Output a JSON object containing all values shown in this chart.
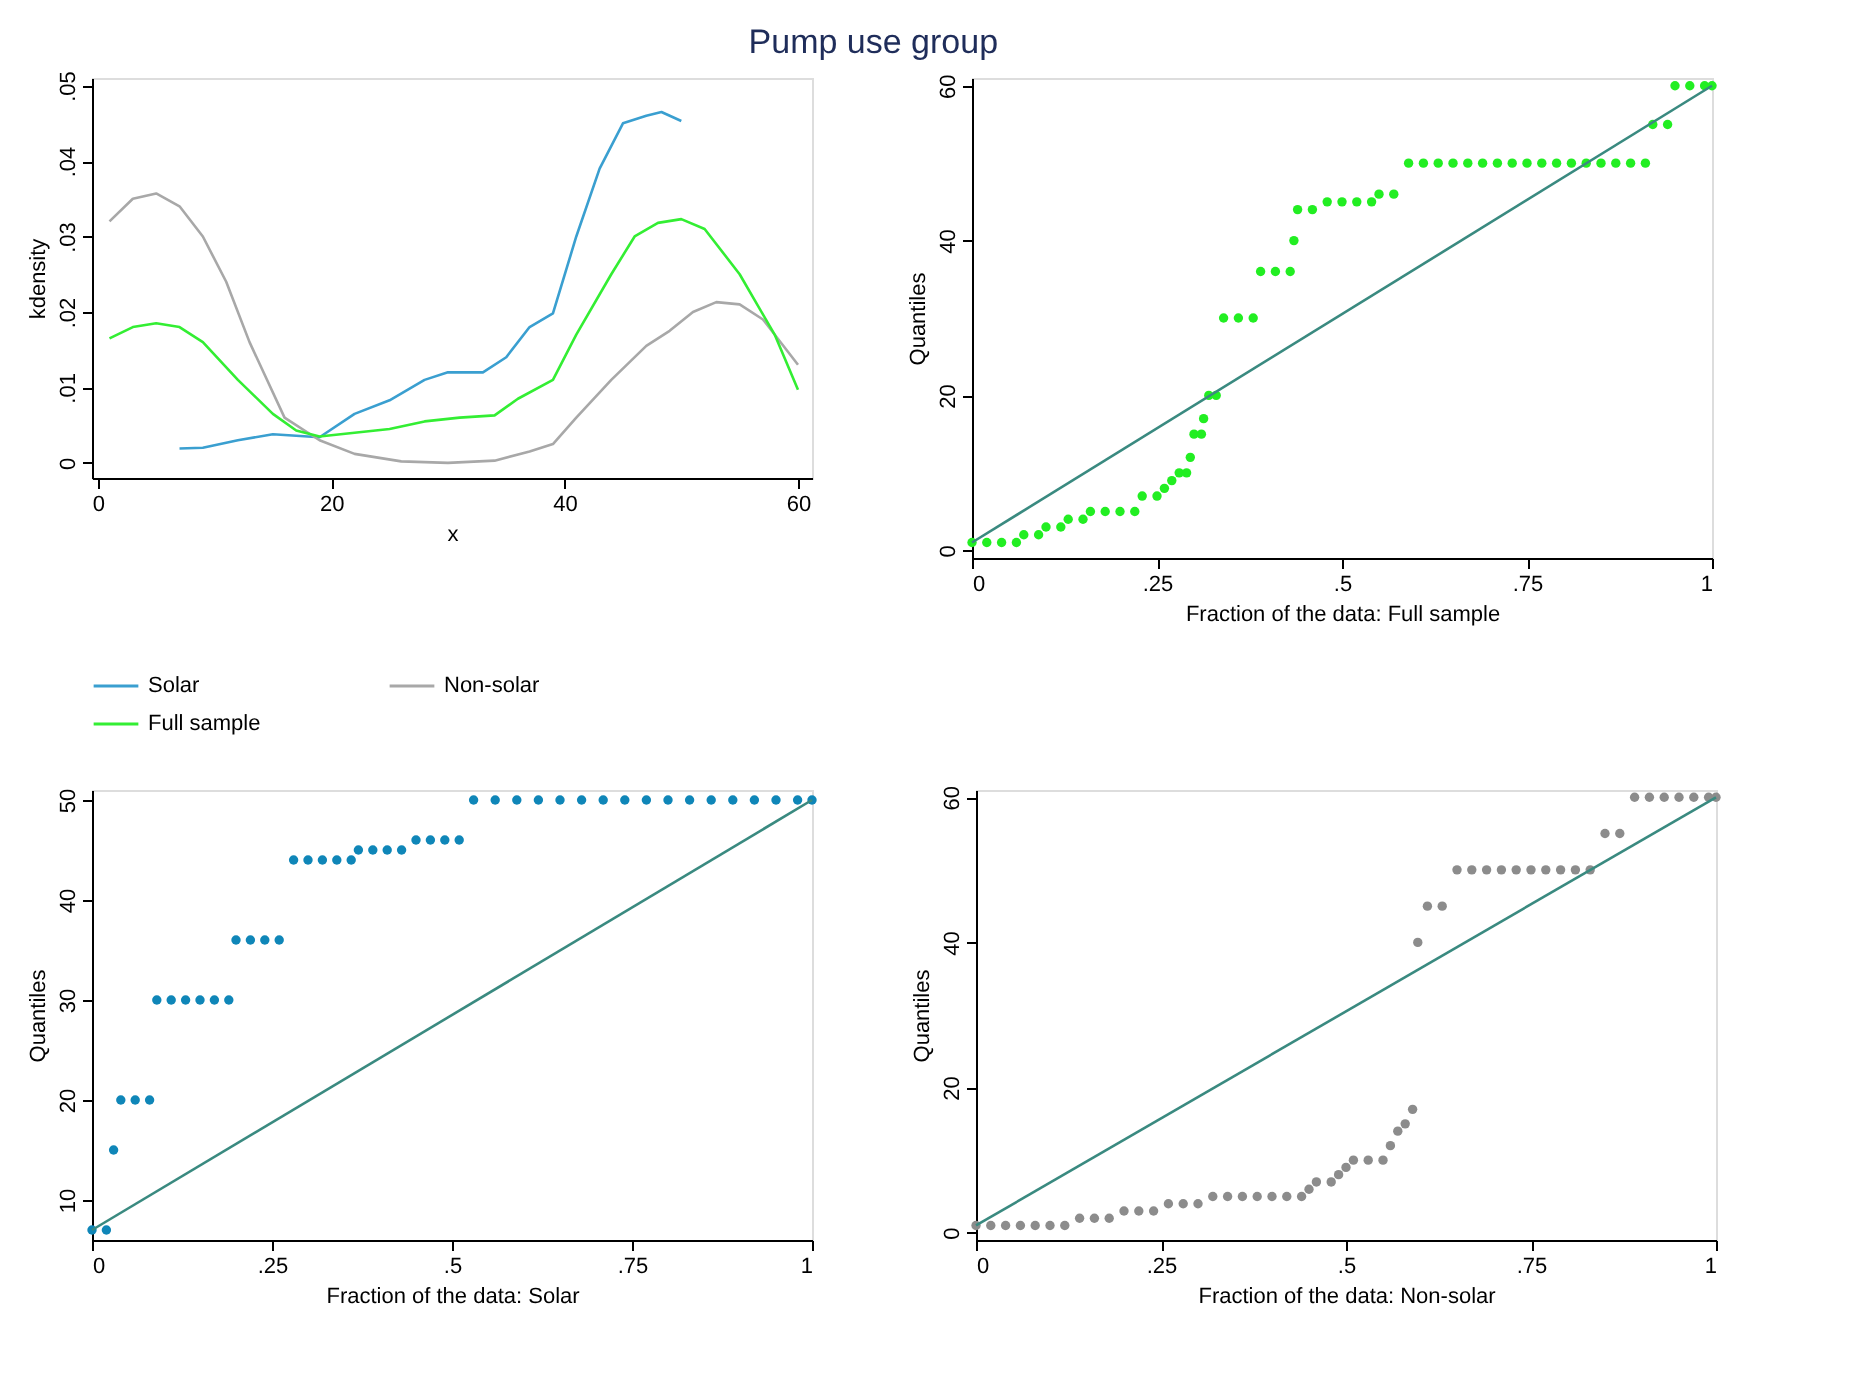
{
  "chart_data": [
    {
      "type": "line",
      "title": "Pump use group",
      "xlabel": "x",
      "ylabel": "kdensity",
      "legend": "bottom",
      "xlim": [
        -0.5,
        61.2
      ],
      "xticks": [
        0,
        20,
        40,
        60
      ],
      "ylim": [
        -0.002,
        0.051
      ],
      "yticks": [
        0,
        {
          "value": 0.01,
          "label": ".01"
        },
        {
          "value": 0.02,
          "label": ".02"
        },
        {
          "value": 0.03,
          "label": ".03"
        },
        {
          "value": 0.04,
          "label": ".04"
        },
        {
          "value": 0.05,
          "label": ".05"
        }
      ],
      "series": [
        {
          "name": "Solar",
          "color": "#3a9fd0",
          "x": [
            7,
            9,
            12,
            15,
            19,
            22,
            25,
            28,
            30,
            33,
            35,
            37,
            39,
            41,
            43,
            45,
            47,
            48.3,
            50
          ],
          "values": [
            0.0019,
            0.002,
            0.003,
            0.0038,
            0.0034,
            0.0065,
            0.0083,
            0.011,
            0.012,
            0.012,
            0.014,
            0.018,
            0.0198,
            0.03,
            0.039,
            0.045,
            0.046,
            0.0465,
            0.0453
          ]
        },
        {
          "name": "Non-solar",
          "color": "#a8a8a8",
          "x": [
            1,
            3,
            5,
            7,
            9,
            11,
            13,
            16,
            19,
            22,
            26,
            30,
            34,
            37,
            39,
            41,
            44,
            47,
            49,
            51,
            53,
            55,
            57,
            60
          ],
          "values": [
            0.032,
            0.035,
            0.0357,
            0.034,
            0.03,
            0.024,
            0.016,
            0.006,
            0.003,
            0.0012,
            0.0002,
            0,
            0.0003,
            0.0015,
            0.0025,
            0.006,
            0.011,
            0.0155,
            0.0175,
            0.02,
            0.0213,
            0.021,
            0.019,
            0.013
          ]
        },
        {
          "name": "Full sample",
          "color": "#33ee33",
          "x": [
            1,
            3,
            5,
            7,
            9,
            12,
            15,
            17,
            19,
            22,
            25,
            28,
            31,
            34,
            36,
            39,
            41,
            44,
            46,
            48,
            50,
            52,
            55,
            58,
            60
          ],
          "values": [
            0.0165,
            0.018,
            0.0185,
            0.018,
            0.016,
            0.011,
            0.0065,
            0.0043,
            0.0035,
            0.004,
            0.0045,
            0.0055,
            0.006,
            0.0063,
            0.0085,
            0.011,
            0.017,
            0.025,
            0.03,
            0.0318,
            0.0323,
            0.031,
            0.025,
            0.017,
            0.0097
          ]
        }
      ]
    },
    {
      "type": "scatter",
      "xlabel": "Fraction of the data: Full sample",
      "ylabel": "Quantiles",
      "xlim": [
        0,
        1
      ],
      "xticks": [
        0,
        {
          "value": 0.25,
          "label": ".25"
        },
        {
          "value": 0.5,
          "label": ".5"
        },
        {
          "value": 0.75,
          "label": ".75"
        },
        1
      ],
      "ylim": [
        -1,
        61
      ],
      "yticks": [
        0,
        20,
        40,
        60
      ],
      "series": [
        {
          "color": "#22ee22",
          "marker": "circle",
          "x": [
            0,
            0.02,
            0.04,
            0.06,
            0.07,
            0.09,
            0.1,
            0.12,
            0.13,
            0.15,
            0.16,
            0.18,
            0.2,
            0.22,
            0.23,
            0.25,
            0.26,
            0.27,
            0.28,
            0.29,
            0.295,
            0.3,
            0.31,
            0.313,
            0.32,
            0.33,
            0.34,
            0.36,
            0.38,
            0.39,
            0.41,
            0.43,
            0.435,
            0.44,
            0.46,
            0.48,
            0.5,
            0.52,
            0.54,
            0.55,
            0.57,
            0.59,
            0.61,
            0.63,
            0.65,
            0.67,
            0.69,
            0.71,
            0.73,
            0.75,
            0.77,
            0.79,
            0.81,
            0.83,
            0.85,
            0.87,
            0.89,
            0.91,
            0.92,
            0.94,
            0.95,
            0.97,
            0.99,
            1
          ],
          "values": [
            1,
            1,
            1,
            1,
            2,
            2,
            3,
            3,
            4,
            4,
            5,
            5,
            5,
            5,
            7,
            7,
            8,
            9,
            10,
            10,
            12,
            15,
            15,
            17,
            20,
            20,
            30,
            30,
            30,
            36,
            36,
            36,
            40,
            44,
            44,
            45,
            45,
            45,
            45,
            46,
            46,
            50,
            50,
            50,
            50,
            50,
            50,
            50,
            50,
            50,
            50,
            50,
            50,
            50,
            50,
            50,
            50,
            50,
            55,
            55,
            60,
            60,
            60,
            60
          ]
        },
        {
          "type": "line",
          "color": "#3a8a80",
          "x": [
            0,
            1
          ],
          "values": [
            1,
            60
          ]
        }
      ]
    },
    {
      "type": "scatter",
      "xlabel": "Fraction of the data: Solar",
      "ylabel": "Quantiles",
      "xlim": [
        0,
        1
      ],
      "xticks": [
        0,
        {
          "value": 0.25,
          "label": ".25"
        },
        {
          "value": 0.5,
          "label": ".5"
        },
        {
          "value": 0.75,
          "label": ".75"
        },
        1
      ],
      "ylim": [
        6,
        51
      ],
      "yticks": [
        10,
        20,
        30,
        40,
        50
      ],
      "series": [
        {
          "color": "#0f86b8",
          "marker": "circle",
          "x": [
            0,
            0.02,
            0.03,
            0.04,
            0.06,
            0.08,
            0.09,
            0.11,
            0.13,
            0.15,
            0.17,
            0.19,
            0.2,
            0.22,
            0.24,
            0.26,
            0.28,
            0.3,
            0.32,
            0.34,
            0.36,
            0.37,
            0.39,
            0.41,
            0.43,
            0.45,
            0.47,
            0.49,
            0.51,
            0.53,
            0.56,
            0.59,
            0.62,
            0.65,
            0.68,
            0.71,
            0.74,
            0.77,
            0.8,
            0.83,
            0.86,
            0.89,
            0.92,
            0.95,
            0.98,
            1
          ],
          "values": [
            7,
            7,
            15,
            20,
            20,
            20,
            30,
            30,
            30,
            30,
            30,
            30,
            36,
            36,
            36,
            36,
            44,
            44,
            44,
            44,
            44,
            45,
            45,
            45,
            45,
            46,
            46,
            46,
            46,
            50,
            50,
            50,
            50,
            50,
            50,
            50,
            50,
            50,
            50,
            50,
            50,
            50,
            50,
            50,
            50,
            50
          ]
        },
        {
          "type": "line",
          "color": "#3a8a80",
          "x": [
            0,
            1
          ],
          "values": [
            7,
            50
          ]
        }
      ]
    },
    {
      "type": "scatter",
      "xlabel": "Fraction of the data: Non-solar",
      "ylabel": "Quantiles",
      "xlim": [
        0,
        1
      ],
      "xticks": [
        0,
        {
          "value": 0.25,
          "label": ".25"
        },
        {
          "value": 0.5,
          "label": ".5"
        },
        {
          "value": 0.75,
          "label": ".75"
        },
        1
      ],
      "ylim": [
        -1,
        61
      ],
      "yticks": [
        0,
        20,
        40,
        60
      ],
      "series": [
        {
          "color": "#8c8c8c",
          "marker": "circle",
          "x": [
            0,
            0.02,
            0.04,
            0.06,
            0.08,
            0.1,
            0.12,
            0.14,
            0.16,
            0.18,
            0.2,
            0.22,
            0.24,
            0.26,
            0.28,
            0.3,
            0.32,
            0.34,
            0.36,
            0.38,
            0.4,
            0.42,
            0.44,
            0.45,
            0.46,
            0.48,
            0.49,
            0.5,
            0.51,
            0.53,
            0.55,
            0.56,
            0.57,
            0.58,
            0.59,
            0.597,
            0.61,
            0.63,
            0.65,
            0.67,
            0.69,
            0.71,
            0.73,
            0.75,
            0.77,
            0.79,
            0.81,
            0.83,
            0.85,
            0.87,
            0.89,
            0.91,
            0.93,
            0.95,
            0.97,
            0.99,
            1
          ],
          "values": [
            1,
            1,
            1,
            1,
            1,
            1,
            1,
            2,
            2,
            2,
            3,
            3,
            3,
            4,
            4,
            4,
            5,
            5,
            5,
            5,
            5,
            5,
            5,
            6,
            7,
            7,
            8,
            9,
            10,
            10,
            10,
            12,
            14,
            15,
            17,
            40,
            45,
            45,
            50,
            50,
            50,
            50,
            50,
            50,
            50,
            50,
            50,
            50,
            55,
            55,
            60,
            60,
            60,
            60,
            60,
            60,
            60
          ]
        },
        {
          "type": "line",
          "color": "#3a8a80",
          "x": [
            0,
            1
          ],
          "values": [
            1,
            60
          ]
        }
      ]
    }
  ]
}
